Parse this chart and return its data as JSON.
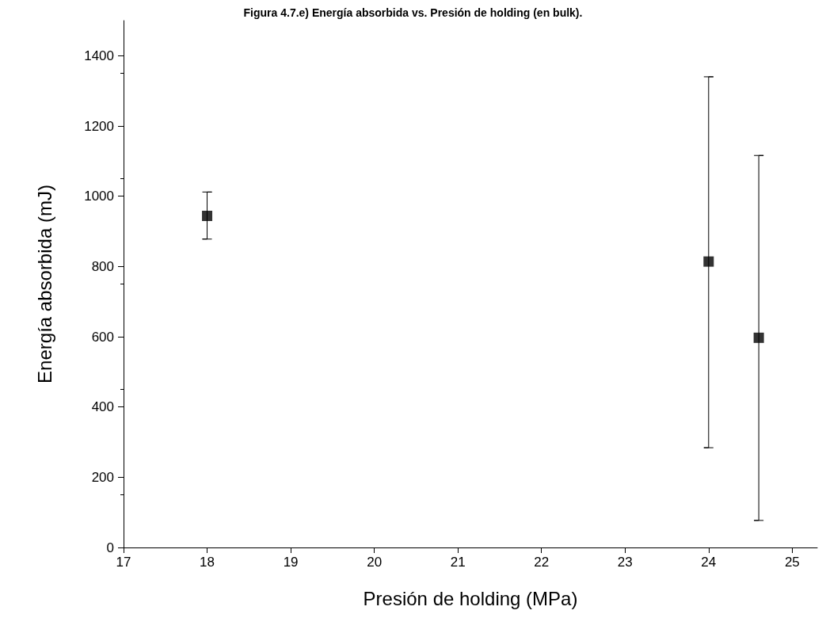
{
  "chart_data": {
    "type": "scatter",
    "title": "Figura 4.7.e) Energía absorbida vs. Presión de holding (en bulk).",
    "xlabel": "Presión de holding (MPa)",
    "ylabel": "Energía absorbida (mJ)",
    "x": [
      18,
      24,
      24.6
    ],
    "values": [
      944,
      814,
      597
    ],
    "errors": [
      [
        878,
        1012
      ],
      [
        284,
        1340
      ],
      [
        77,
        1116
      ]
    ],
    "color": "#000000",
    "marker": "square",
    "xlim": [
      17,
      25.3
    ],
    "xticks": [
      17,
      18,
      19,
      20,
      21,
      22,
      23,
      24,
      25
    ],
    "ylim": [
      0,
      1500
    ],
    "yticks": [
      0,
      200,
      400,
      600,
      800,
      1000,
      1200,
      1400
    ]
  }
}
